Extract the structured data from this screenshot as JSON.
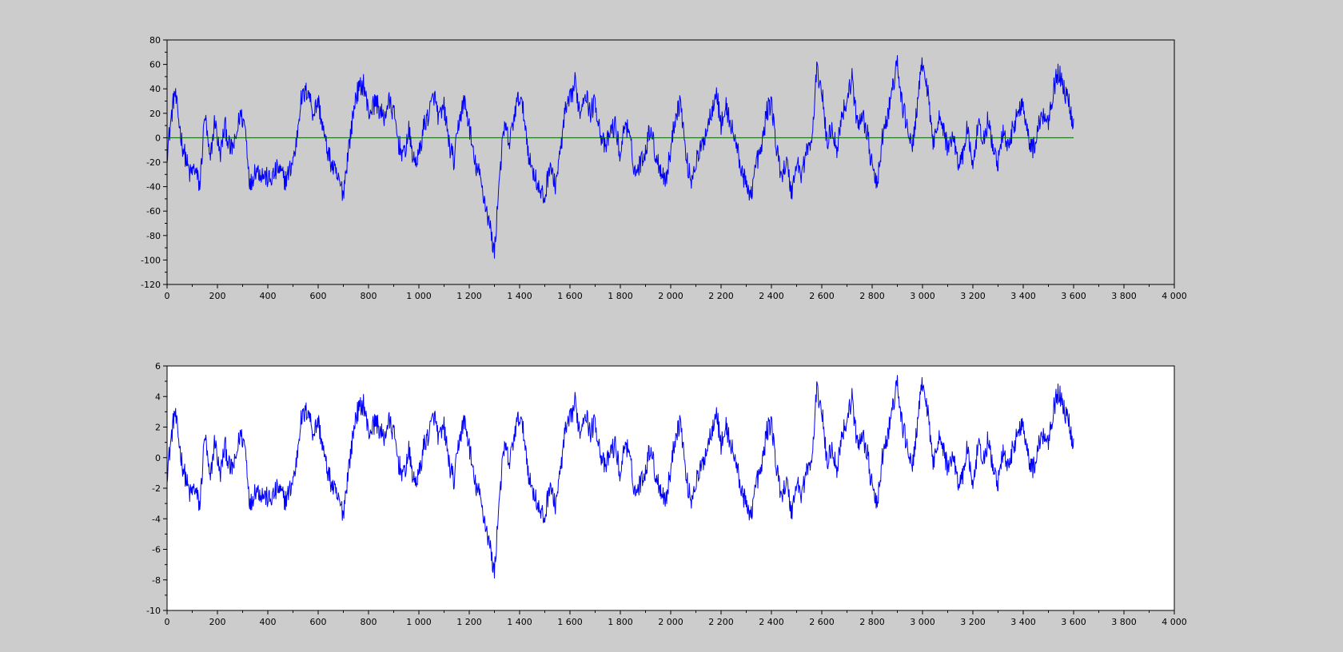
{
  "figure": {
    "background": "#cccccc"
  },
  "chart_data": [
    {
      "type": "line",
      "plot_background": "#cccccc",
      "xlim": [
        0,
        4000
      ],
      "ylim": [
        -120,
        80
      ],
      "x_ticks": [
        0,
        200,
        400,
        600,
        800,
        1000,
        1200,
        1400,
        1600,
        1800,
        2000,
        2200,
        2400,
        2600,
        2800,
        3000,
        3200,
        3400,
        3600,
        3800,
        4000
      ],
      "x_tick_labels": [
        "0",
        "200",
        "400",
        "600",
        "800",
        "1 000",
        "1 200",
        "1 400",
        "1 600",
        "1 800",
        "2 000",
        "2 200",
        "2 400",
        "2 600",
        "2 800",
        "3 000",
        "3 200",
        "3 400",
        "3 600",
        "3 800",
        "4 000"
      ],
      "y_ticks": [
        -120,
        -100,
        -80,
        -60,
        -40,
        -20,
        0,
        20,
        40,
        60,
        80
      ],
      "y_tick_labels": [
        "-120",
        "-100",
        "-80",
        "-60",
        "-40",
        "-20",
        "0",
        "20",
        "40",
        "60",
        "80"
      ],
      "grid": false,
      "series": [
        {
          "color": "#0000ff",
          "x_start": 0,
          "x_end": 3600,
          "points": [
            [
              0,
              -12
            ],
            [
              30,
              38
            ],
            [
              60,
              -5
            ],
            [
              90,
              -30
            ],
            [
              110,
              -25
            ],
            [
              130,
              -40
            ],
            [
              150,
              20
            ],
            [
              170,
              -20
            ],
            [
              190,
              15
            ],
            [
              210,
              -15
            ],
            [
              230,
              10
            ],
            [
              250,
              -10
            ],
            [
              270,
              -5
            ],
            [
              290,
              20
            ],
            [
              310,
              10
            ],
            [
              330,
              -40
            ],
            [
              350,
              -25
            ],
            [
              380,
              -30
            ],
            [
              410,
              -35
            ],
            [
              440,
              -25
            ],
            [
              470,
              -35
            ],
            [
              490,
              -25
            ],
            [
              510,
              -10
            ],
            [
              530,
              30
            ],
            [
              560,
              40
            ],
            [
              580,
              20
            ],
            [
              600,
              30
            ],
            [
              630,
              -5
            ],
            [
              650,
              -20
            ],
            [
              670,
              -30
            ],
            [
              700,
              -45
            ],
            [
              720,
              -10
            ],
            [
              750,
              35
            ],
            [
              780,
              45
            ],
            [
              800,
              20
            ],
            [
              830,
              30
            ],
            [
              860,
              15
            ],
            [
              880,
              30
            ],
            [
              900,
              20
            ],
            [
              920,
              -5
            ],
            [
              940,
              -15
            ],
            [
              960,
              5
            ],
            [
              980,
              -20
            ],
            [
              1000,
              -15
            ],
            [
              1020,
              10
            ],
            [
              1040,
              20
            ],
            [
              1060,
              35
            ],
            [
              1080,
              15
            ],
            [
              1100,
              25
            ],
            [
              1120,
              -5
            ],
            [
              1140,
              -20
            ],
            [
              1160,
              15
            ],
            [
              1180,
              30
            ],
            [
              1200,
              10
            ],
            [
              1220,
              -20
            ],
            [
              1240,
              -30
            ],
            [
              1260,
              -50
            ],
            [
              1280,
              -70
            ],
            [
              1300,
              -95
            ],
            [
              1320,
              -30
            ],
            [
              1340,
              10
            ],
            [
              1360,
              -5
            ],
            [
              1380,
              20
            ],
            [
              1400,
              35
            ],
            [
              1420,
              15
            ],
            [
              1440,
              -20
            ],
            [
              1460,
              -30
            ],
            [
              1480,
              -45
            ],
            [
              1500,
              -50
            ],
            [
              1520,
              -20
            ],
            [
              1540,
              -40
            ],
            [
              1560,
              -15
            ],
            [
              1580,
              20
            ],
            [
              1600,
              30
            ],
            [
              1620,
              45
            ],
            [
              1640,
              20
            ],
            [
              1660,
              40
            ],
            [
              1680,
              20
            ],
            [
              1700,
              30
            ],
            [
              1720,
              5
            ],
            [
              1740,
              -10
            ],
            [
              1760,
              5
            ],
            [
              1780,
              10
            ],
            [
              1800,
              -15
            ],
            [
              1820,
              15
            ],
            [
              1840,
              -5
            ],
            [
              1860,
              -30
            ],
            [
              1880,
              -20
            ],
            [
              1900,
              -10
            ],
            [
              1920,
              10
            ],
            [
              1940,
              -15
            ],
            [
              1960,
              -25
            ],
            [
              1980,
              -35
            ],
            [
              2000,
              -10
            ],
            [
              2020,
              20
            ],
            [
              2040,
              30
            ],
            [
              2060,
              -15
            ],
            [
              2080,
              -35
            ],
            [
              2100,
              -20
            ],
            [
              2120,
              -10
            ],
            [
              2140,
              5
            ],
            [
              2160,
              20
            ],
            [
              2180,
              40
            ],
            [
              2200,
              10
            ],
            [
              2220,
              25
            ],
            [
              2240,
              10
            ],
            [
              2260,
              -5
            ],
            [
              2280,
              -25
            ],
            [
              2300,
              -40
            ],
            [
              2320,
              -45
            ],
            [
              2340,
              -20
            ],
            [
              2360,
              -10
            ],
            [
              2380,
              20
            ],
            [
              2400,
              30
            ],
            [
              2420,
              -10
            ],
            [
              2440,
              -30
            ],
            [
              2460,
              -20
            ],
            [
              2480,
              -45
            ],
            [
              2500,
              -20
            ],
            [
              2520,
              -30
            ],
            [
              2540,
              -10
            ],
            [
              2560,
              -5
            ],
            [
              2580,
              55
            ],
            [
              2600,
              40
            ],
            [
              2620,
              -5
            ],
            [
              2640,
              10
            ],
            [
              2660,
              -10
            ],
            [
              2680,
              20
            ],
            [
              2700,
              30
            ],
            [
              2720,
              50
            ],
            [
              2740,
              10
            ],
            [
              2760,
              20
            ],
            [
              2780,
              5
            ],
            [
              2800,
              -25
            ],
            [
              2820,
              -40
            ],
            [
              2840,
              0
            ],
            [
              2860,
              15
            ],
            [
              2880,
              40
            ],
            [
              2900,
              60
            ],
            [
              2920,
              25
            ],
            [
              2940,
              10
            ],
            [
              2960,
              -10
            ],
            [
              2980,
              30
            ],
            [
              3000,
              60
            ],
            [
              3020,
              40
            ],
            [
              3040,
              -5
            ],
            [
              3060,
              15
            ],
            [
              3080,
              10
            ],
            [
              3100,
              -10
            ],
            [
              3120,
              5
            ],
            [
              3140,
              -20
            ],
            [
              3160,
              -15
            ],
            [
              3180,
              10
            ],
            [
              3200,
              -30
            ],
            [
              3220,
              10
            ],
            [
              3240,
              -5
            ],
            [
              3260,
              15
            ],
            [
              3280,
              -10
            ],
            [
              3300,
              -20
            ],
            [
              3320,
              5
            ],
            [
              3340,
              -10
            ],
            [
              3360,
              10
            ],
            [
              3380,
              20
            ],
            [
              3400,
              30
            ],
            [
              3420,
              0
            ],
            [
              3440,
              -10
            ],
            [
              3460,
              10
            ],
            [
              3480,
              20
            ],
            [
              3500,
              15
            ],
            [
              3520,
              40
            ],
            [
              3540,
              55
            ],
            [
              3560,
              40
            ],
            [
              3580,
              30
            ],
            [
              3600,
              10
            ]
          ]
        },
        {
          "color": "#006400",
          "x_start": 0,
          "x_end": 3600,
          "points": [
            [
              0,
              0
            ],
            [
              3600,
              0
            ]
          ]
        }
      ]
    },
    {
      "type": "line",
      "plot_background": "#ffffff",
      "xlim": [
        0,
        4000
      ],
      "ylim": [
        -10,
        6
      ],
      "x_ticks": [
        0,
        200,
        400,
        600,
        800,
        1000,
        1200,
        1400,
        1600,
        1800,
        2000,
        2200,
        2400,
        2600,
        2800,
        3000,
        3200,
        3400,
        3600,
        3800,
        4000
      ],
      "x_tick_labels": [
        "0",
        "200",
        "400",
        "600",
        "800",
        "1 000",
        "1 200",
        "1 400",
        "1 600",
        "1 800",
        "2 000",
        "2 200",
        "2 400",
        "2 600",
        "2 800",
        "3 000",
        "3 200",
        "3 400",
        "3 600",
        "3 800",
        "4 000"
      ],
      "y_ticks": [
        -10,
        -8,
        -6,
        -4,
        -2,
        0,
        2,
        4,
        6
      ],
      "y_tick_labels": [
        "-10",
        "-8",
        "-6",
        "-4",
        "-2",
        "0",
        "2",
        "4",
        "6"
      ],
      "grid": false,
      "series": [
        {
          "color": "#0000ff",
          "x_start": 0,
          "x_end": 3600,
          "scale_of_series": 0.08
        }
      ]
    }
  ]
}
